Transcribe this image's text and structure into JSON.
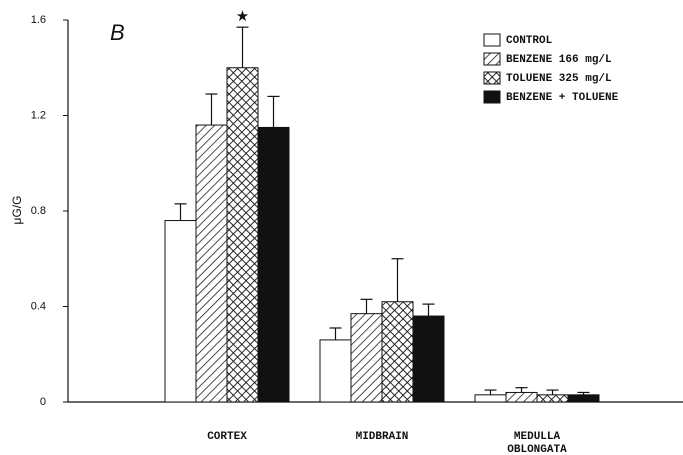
{
  "chart_data": {
    "type": "bar",
    "panel_label": "B",
    "ylabel": "μG/G",
    "annotation": "★",
    "categories": [
      [
        "CORTEX"
      ],
      [
        "MIDBRAIN"
      ],
      [
        "MEDULLA",
        "OBLONGATA"
      ]
    ],
    "series": [
      {
        "name": "CONTROL",
        "color": "#ffffff",
        "pattern": "none",
        "values": [
          0.76,
          0.26,
          0.03
        ],
        "errors": [
          0.07,
          0.05,
          0.02
        ]
      },
      {
        "name": "BENZENE 166 mg/L",
        "color": "#ffffff",
        "pattern": "hatch",
        "values": [
          1.16,
          0.37,
          0.04
        ],
        "errors": [
          0.13,
          0.06,
          0.02
        ]
      },
      {
        "name": "TOLUENE 325 mg/L",
        "color": "#ffffff",
        "pattern": "crosshatch",
        "values": [
          1.4,
          0.42,
          0.03
        ],
        "errors": [
          0.17,
          0.18,
          0.02
        ]
      },
      {
        "name": "BENZENE + TOLUENE",
        "color": "#111111",
        "pattern": "none",
        "values": [
          1.15,
          0.36,
          0.03
        ],
        "errors": [
          0.13,
          0.05,
          0.01
        ]
      }
    ],
    "ylim": [
      0,
      1.6
    ],
    "yticks": [
      0,
      0.4,
      0.8,
      1.2,
      1.6
    ],
    "grid": false
  }
}
